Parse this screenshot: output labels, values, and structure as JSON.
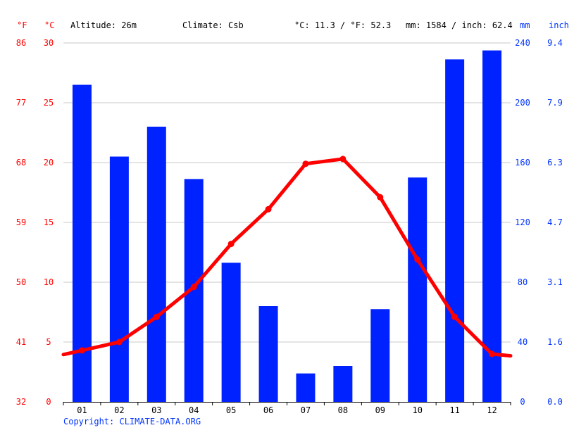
{
  "header": {
    "unit_f": "°F",
    "unit_c": "°C",
    "altitude": "Altitude: 26m",
    "climate": "Climate: Csb",
    "temp_summary": "°C: 11.3 / °F: 52.3",
    "precip_summary": "mm: 1584 / inch: 62.4",
    "unit_mm": "mm",
    "unit_inch": "inch"
  },
  "copyright": "Copyright: CLIMATE-DATA.ORG",
  "axes": {
    "fahrenheit_ticks": [
      "86",
      "77",
      "68",
      "59",
      "50",
      "41",
      "32"
    ],
    "celsius_ticks": [
      "30",
      "25",
      "20",
      "15",
      "10",
      "5",
      "0"
    ],
    "mm_ticks": [
      "240",
      "200",
      "160",
      "120",
      "80",
      "40",
      "0"
    ],
    "inch_ticks": [
      "9.4",
      "7.9",
      "6.3",
      "4.7",
      "3.1",
      "1.6",
      "0.0"
    ]
  },
  "colors": {
    "temperature": "#ff0000",
    "precipitation": "#0022ff",
    "grid": "#c8c8c8",
    "axis_text_left": "#ff0000",
    "axis_text_right": "#0033ff"
  },
  "chart_data": {
    "type": "bar",
    "categories": [
      "01",
      "02",
      "03",
      "04",
      "05",
      "06",
      "07",
      "08",
      "09",
      "10",
      "11",
      "12"
    ],
    "series": [
      {
        "type": "bar",
        "unit": "mm",
        "values": [
          212,
          164,
          184,
          149,
          93,
          64,
          19,
          24,
          62,
          150,
          229,
          235
        ]
      },
      {
        "type": "line",
        "unit": "°C",
        "values": [
          4.3,
          5.0,
          7.1,
          9.6,
          13.2,
          16.1,
          19.9,
          20.3,
          17.1,
          11.9,
          7.1,
          4.0
        ]
      }
    ],
    "y_left_celsius_range": [
      0,
      30
    ],
    "y_left_fahrenheit_range": [
      32,
      86
    ],
    "y_right_mm_range": [
      0,
      240
    ],
    "y_right_inch_range": [
      0.0,
      9.4
    ],
    "grid": true
  }
}
